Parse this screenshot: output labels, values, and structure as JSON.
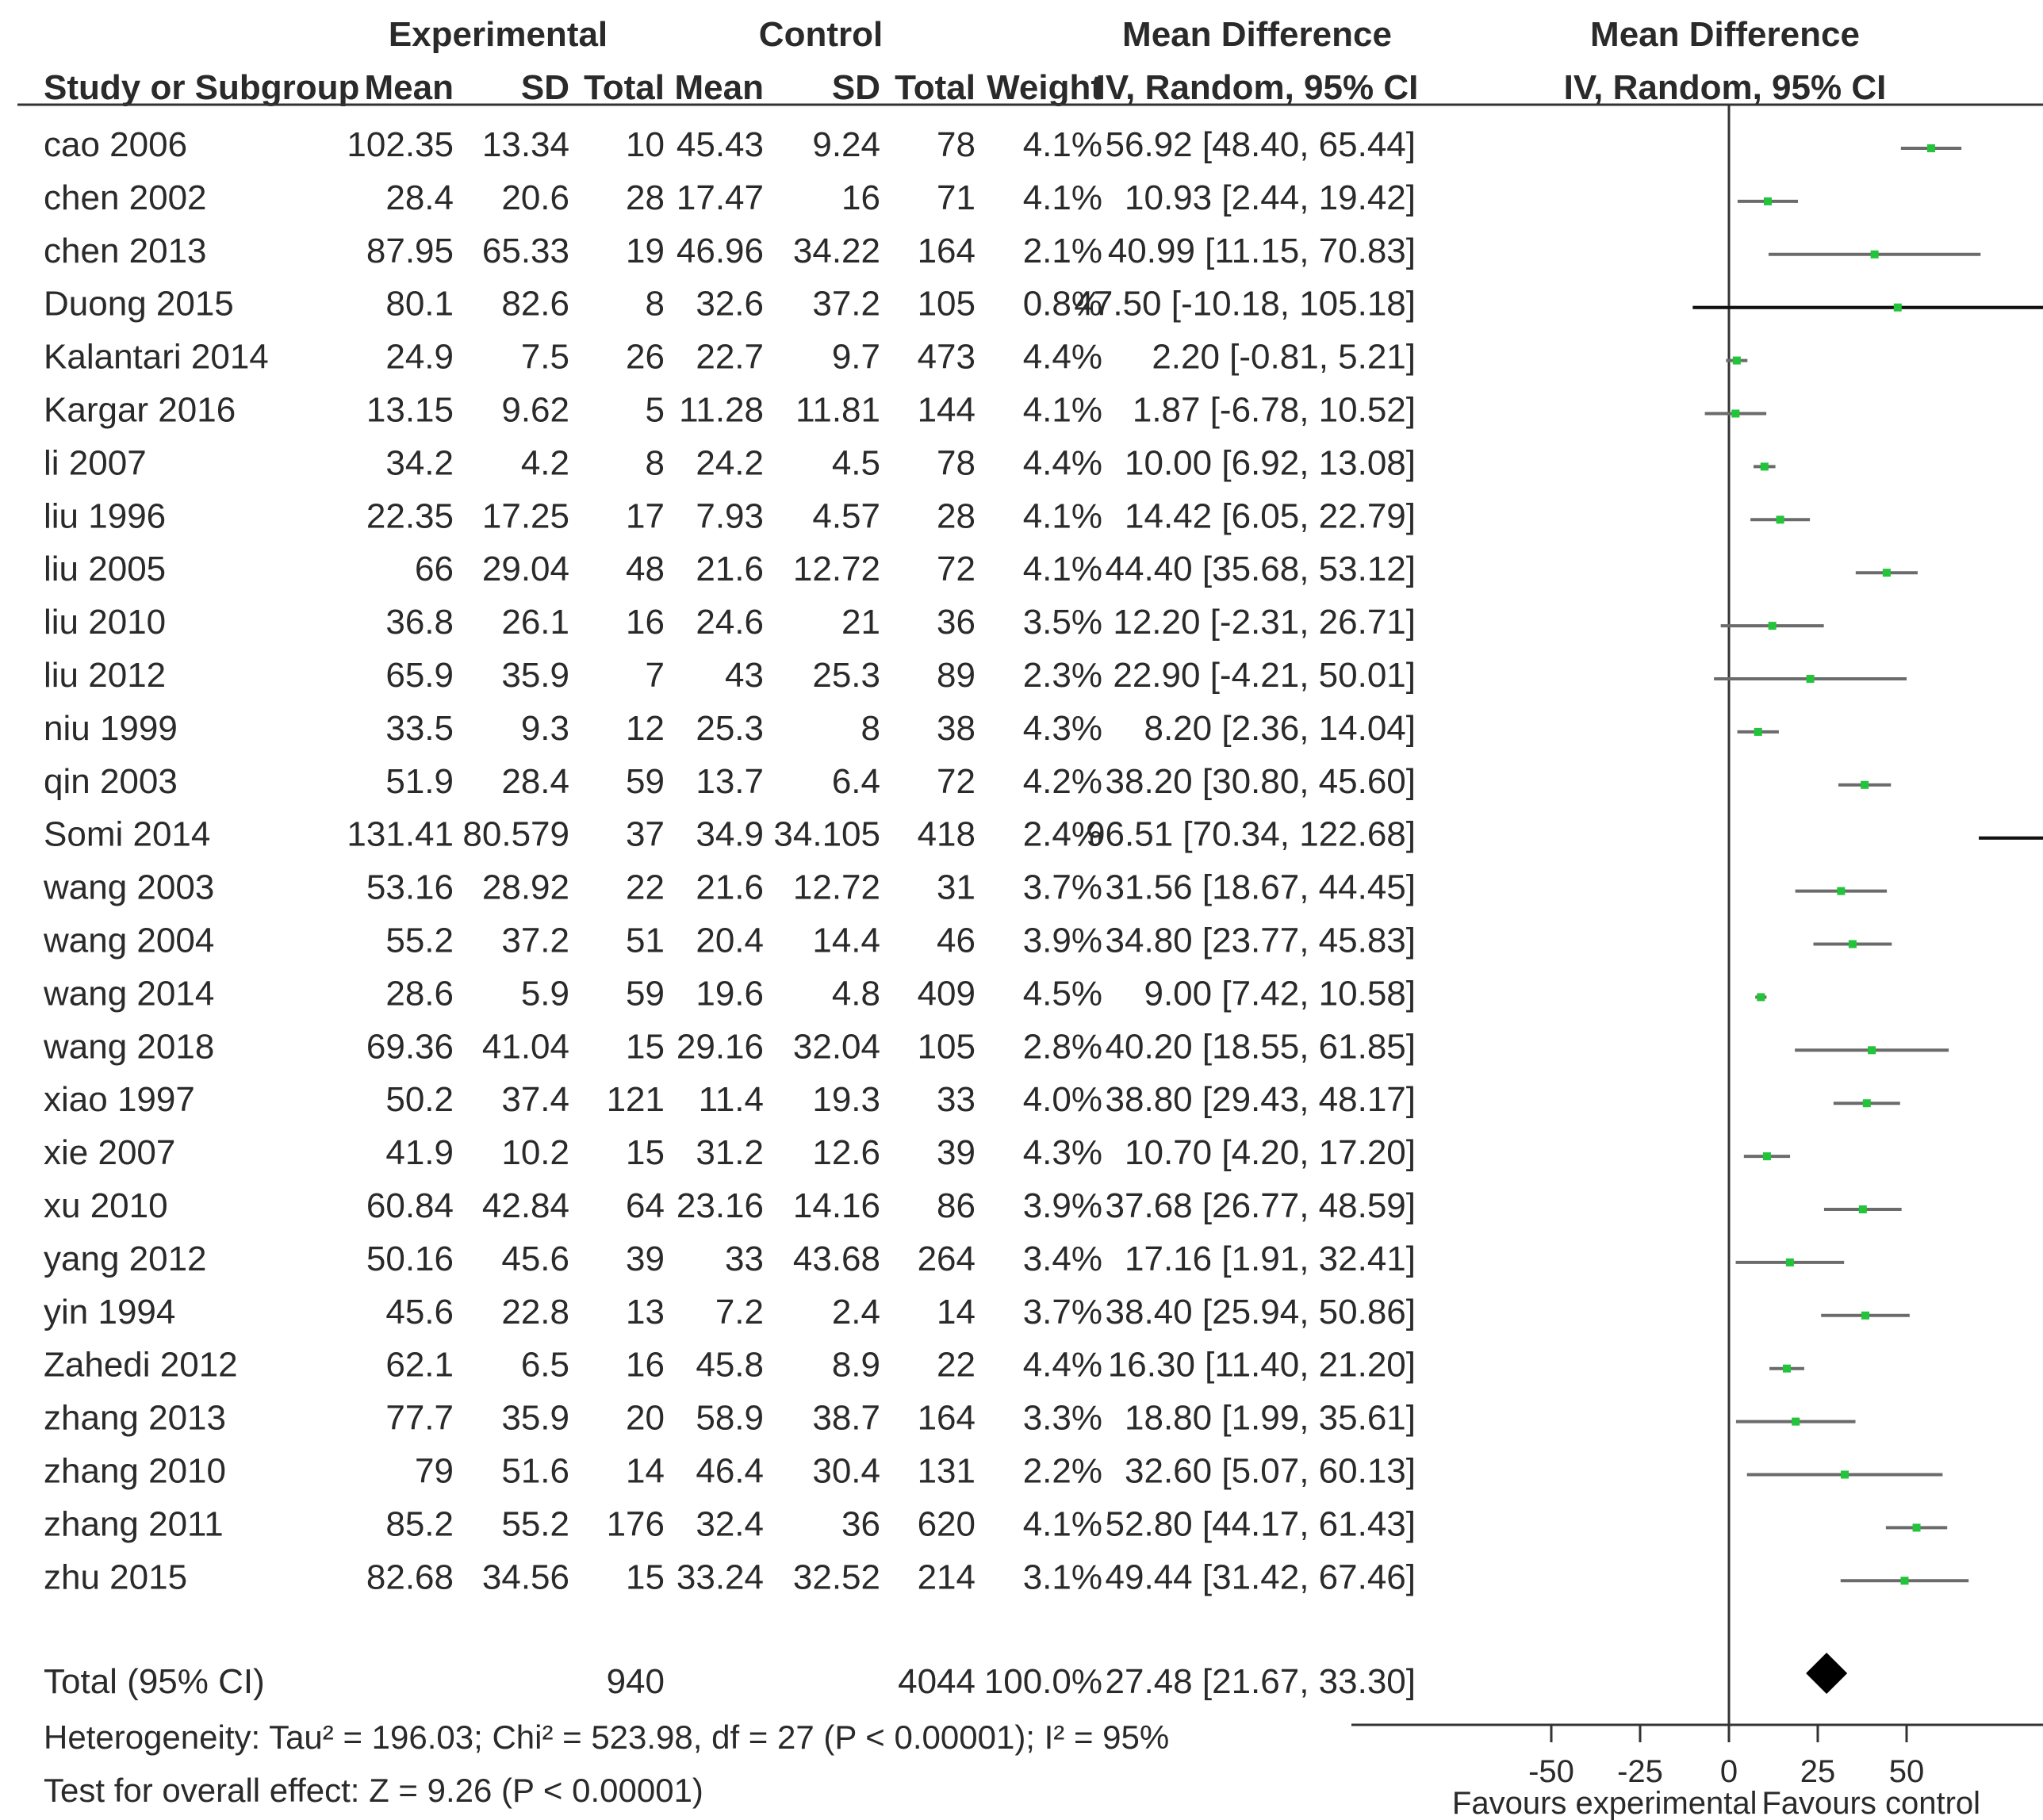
{
  "headers": {
    "experimental": "Experimental",
    "control": "Control",
    "mean_difference": "Mean Difference",
    "mean_difference_plot": "Mean Difference",
    "study": "Study or Subgroup",
    "exp_mean": "Mean",
    "exp_sd": "SD",
    "exp_total": "Total",
    "ctl_mean": "Mean",
    "ctl_sd": "SD",
    "ctl_total": "Total",
    "weight": "Weight",
    "method": "IV, Random, 95% CI",
    "method_plot": "IV, Random, 95% CI"
  },
  "chart_data": {
    "type": "forest",
    "title": "Mean Difference IV, Random, 95% CI",
    "xlabel_left": "Favours experimental",
    "xlabel_right": "Favours control",
    "xlim": [
      -100,
      100
    ],
    "xticks": [
      -50,
      -25,
      0,
      25,
      50
    ],
    "studies": [
      {
        "name": "cao 2006",
        "exp_mean": "102.35",
        "exp_sd": "13.34",
        "exp_total": "10",
        "ctl_mean": "45.43",
        "ctl_sd": "9.24",
        "ctl_total": "78",
        "weight": "4.1%",
        "ci_text": "56.92 [48.40, 65.44]",
        "md": 56.92,
        "lo": 48.4,
        "hi": 65.44
      },
      {
        "name": "chen 2002",
        "exp_mean": "28.4",
        "exp_sd": "20.6",
        "exp_total": "28",
        "ctl_mean": "17.47",
        "ctl_sd": "16",
        "ctl_total": "71",
        "weight": "4.1%",
        "ci_text": "10.93 [2.44, 19.42]",
        "md": 10.93,
        "lo": 2.44,
        "hi": 19.42
      },
      {
        "name": "chen 2013",
        "exp_mean": "87.95",
        "exp_sd": "65.33",
        "exp_total": "19",
        "ctl_mean": "46.96",
        "ctl_sd": "34.22",
        "ctl_total": "164",
        "weight": "2.1%",
        "ci_text": "40.99 [11.15, 70.83]",
        "md": 40.99,
        "lo": 11.15,
        "hi": 70.83
      },
      {
        "name": "Duong 2015",
        "exp_mean": "80.1",
        "exp_sd": "82.6",
        "exp_total": "8",
        "ctl_mean": "32.6",
        "ctl_sd": "37.2",
        "ctl_total": "105",
        "weight": "0.8%",
        "ci_text": "47.50 [-10.18, 105.18]",
        "md": 47.5,
        "lo": -10.18,
        "hi": 105.18
      },
      {
        "name": "Kalantari 2014",
        "exp_mean": "24.9",
        "exp_sd": "7.5",
        "exp_total": "26",
        "ctl_mean": "22.7",
        "ctl_sd": "9.7",
        "ctl_total": "473",
        "weight": "4.4%",
        "ci_text": "2.20 [-0.81, 5.21]",
        "md": 2.2,
        "lo": -0.81,
        "hi": 5.21
      },
      {
        "name": "Kargar 2016",
        "exp_mean": "13.15",
        "exp_sd": "9.62",
        "exp_total": "5",
        "ctl_mean": "11.28",
        "ctl_sd": "11.81",
        "ctl_total": "144",
        "weight": "4.1%",
        "ci_text": "1.87 [-6.78, 10.52]",
        "md": 1.87,
        "lo": -6.78,
        "hi": 10.52
      },
      {
        "name": "li 2007",
        "exp_mean": "34.2",
        "exp_sd": "4.2",
        "exp_total": "8",
        "ctl_mean": "24.2",
        "ctl_sd": "4.5",
        "ctl_total": "78",
        "weight": "4.4%",
        "ci_text": "10.00 [6.92, 13.08]",
        "md": 10.0,
        "lo": 6.92,
        "hi": 13.08
      },
      {
        "name": "liu 1996",
        "exp_mean": "22.35",
        "exp_sd": "17.25",
        "exp_total": "17",
        "ctl_mean": "7.93",
        "ctl_sd": "4.57",
        "ctl_total": "28",
        "weight": "4.1%",
        "ci_text": "14.42 [6.05, 22.79]",
        "md": 14.42,
        "lo": 6.05,
        "hi": 22.79
      },
      {
        "name": "liu 2005",
        "exp_mean": "66",
        "exp_sd": "29.04",
        "exp_total": "48",
        "ctl_mean": "21.6",
        "ctl_sd": "12.72",
        "ctl_total": "72",
        "weight": "4.1%",
        "ci_text": "44.40 [35.68, 53.12]",
        "md": 44.4,
        "lo": 35.68,
        "hi": 53.12
      },
      {
        "name": "liu 2010",
        "exp_mean": "36.8",
        "exp_sd": "26.1",
        "exp_total": "16",
        "ctl_mean": "24.6",
        "ctl_sd": "21",
        "ctl_total": "36",
        "weight": "3.5%",
        "ci_text": "12.20 [-2.31, 26.71]",
        "md": 12.2,
        "lo": -2.31,
        "hi": 26.71
      },
      {
        "name": "liu 2012",
        "exp_mean": "65.9",
        "exp_sd": "35.9",
        "exp_total": "7",
        "ctl_mean": "43",
        "ctl_sd": "25.3",
        "ctl_total": "89",
        "weight": "2.3%",
        "ci_text": "22.90 [-4.21, 50.01]",
        "md": 22.9,
        "lo": -4.21,
        "hi": 50.01
      },
      {
        "name": "niu 1999",
        "exp_mean": "33.5",
        "exp_sd": "9.3",
        "exp_total": "12",
        "ctl_mean": "25.3",
        "ctl_sd": "8",
        "ctl_total": "38",
        "weight": "4.3%",
        "ci_text": "8.20 [2.36, 14.04]",
        "md": 8.2,
        "lo": 2.36,
        "hi": 14.04
      },
      {
        "name": "qin 2003",
        "exp_mean": "51.9",
        "exp_sd": "28.4",
        "exp_total": "59",
        "ctl_mean": "13.7",
        "ctl_sd": "6.4",
        "ctl_total": "72",
        "weight": "4.2%",
        "ci_text": "38.20 [30.80, 45.60]",
        "md": 38.2,
        "lo": 30.8,
        "hi": 45.6
      },
      {
        "name": "Somi 2014",
        "exp_mean": "131.41",
        "exp_sd": "80.579",
        "exp_total": "37",
        "ctl_mean": "34.9",
        "ctl_sd": "34.105",
        "ctl_total": "418",
        "weight": "2.4%",
        "ci_text": "96.51 [70.34, 122.68]",
        "md": 96.51,
        "lo": 70.34,
        "hi": 122.68
      },
      {
        "name": "wang 2003",
        "exp_mean": "53.16",
        "exp_sd": "28.92",
        "exp_total": "22",
        "ctl_mean": "21.6",
        "ctl_sd": "12.72",
        "ctl_total": "31",
        "weight": "3.7%",
        "ci_text": "31.56 [18.67, 44.45]",
        "md": 31.56,
        "lo": 18.67,
        "hi": 44.45
      },
      {
        "name": "wang 2004",
        "exp_mean": "55.2",
        "exp_sd": "37.2",
        "exp_total": "51",
        "ctl_mean": "20.4",
        "ctl_sd": "14.4",
        "ctl_total": "46",
        "weight": "3.9%",
        "ci_text": "34.80 [23.77, 45.83]",
        "md": 34.8,
        "lo": 23.77,
        "hi": 45.83
      },
      {
        "name": "wang 2014",
        "exp_mean": "28.6",
        "exp_sd": "5.9",
        "exp_total": "59",
        "ctl_mean": "19.6",
        "ctl_sd": "4.8",
        "ctl_total": "409",
        "weight": "4.5%",
        "ci_text": "9.00 [7.42, 10.58]",
        "md": 9.0,
        "lo": 7.42,
        "hi": 10.58
      },
      {
        "name": "wang 2018",
        "exp_mean": "69.36",
        "exp_sd": "41.04",
        "exp_total": "15",
        "ctl_mean": "29.16",
        "ctl_sd": "32.04",
        "ctl_total": "105",
        "weight": "2.8%",
        "ci_text": "40.20 [18.55, 61.85]",
        "md": 40.2,
        "lo": 18.55,
        "hi": 61.85
      },
      {
        "name": "xiao 1997",
        "exp_mean": "50.2",
        "exp_sd": "37.4",
        "exp_total": "121",
        "ctl_mean": "11.4",
        "ctl_sd": "19.3",
        "ctl_total": "33",
        "weight": "4.0%",
        "ci_text": "38.80 [29.43, 48.17]",
        "md": 38.8,
        "lo": 29.43,
        "hi": 48.17
      },
      {
        "name": "xie 2007",
        "exp_mean": "41.9",
        "exp_sd": "10.2",
        "exp_total": "15",
        "ctl_mean": "31.2",
        "ctl_sd": "12.6",
        "ctl_total": "39",
        "weight": "4.3%",
        "ci_text": "10.70 [4.20, 17.20]",
        "md": 10.7,
        "lo": 4.2,
        "hi": 17.2
      },
      {
        "name": "xu 2010",
        "exp_mean": "60.84",
        "exp_sd": "42.84",
        "exp_total": "64",
        "ctl_mean": "23.16",
        "ctl_sd": "14.16",
        "ctl_total": "86",
        "weight": "3.9%",
        "ci_text": "37.68 [26.77, 48.59]",
        "md": 37.68,
        "lo": 26.77,
        "hi": 48.59
      },
      {
        "name": "yang 2012",
        "exp_mean": "50.16",
        "exp_sd": "45.6",
        "exp_total": "39",
        "ctl_mean": "33",
        "ctl_sd": "43.68",
        "ctl_total": "264",
        "weight": "3.4%",
        "ci_text": "17.16 [1.91, 32.41]",
        "md": 17.16,
        "lo": 1.91,
        "hi": 32.41
      },
      {
        "name": "yin 1994",
        "exp_mean": "45.6",
        "exp_sd": "22.8",
        "exp_total": "13",
        "ctl_mean": "7.2",
        "ctl_sd": "2.4",
        "ctl_total": "14",
        "weight": "3.7%",
        "ci_text": "38.40 [25.94, 50.86]",
        "md": 38.4,
        "lo": 25.94,
        "hi": 50.86
      },
      {
        "name": "Zahedi 2012",
        "exp_mean": "62.1",
        "exp_sd": "6.5",
        "exp_total": "16",
        "ctl_mean": "45.8",
        "ctl_sd": "8.9",
        "ctl_total": "22",
        "weight": "4.4%",
        "ci_text": "16.30 [11.40, 21.20]",
        "md": 16.3,
        "lo": 11.4,
        "hi": 21.2
      },
      {
        "name": "zhang  2013",
        "exp_mean": "77.7",
        "exp_sd": "35.9",
        "exp_total": "20",
        "ctl_mean": "58.9",
        "ctl_sd": "38.7",
        "ctl_total": "164",
        "weight": "3.3%",
        "ci_text": "18.80 [1.99, 35.61]",
        "md": 18.8,
        "lo": 1.99,
        "hi": 35.61
      },
      {
        "name": "zhang 2010",
        "exp_mean": "79",
        "exp_sd": "51.6",
        "exp_total": "14",
        "ctl_mean": "46.4",
        "ctl_sd": "30.4",
        "ctl_total": "131",
        "weight": "2.2%",
        "ci_text": "32.60 [5.07, 60.13]",
        "md": 32.6,
        "lo": 5.07,
        "hi": 60.13
      },
      {
        "name": "zhang 2011",
        "exp_mean": "85.2",
        "exp_sd": "55.2",
        "exp_total": "176",
        "ctl_mean": "32.4",
        "ctl_sd": "36",
        "ctl_total": "620",
        "weight": "4.1%",
        "ci_text": "52.80 [44.17, 61.43]",
        "md": 52.8,
        "lo": 44.17,
        "hi": 61.43
      },
      {
        "name": "zhu 2015",
        "exp_mean": "82.68",
        "exp_sd": "34.56",
        "exp_total": "15",
        "ctl_mean": "33.24",
        "ctl_sd": "32.52",
        "ctl_total": "214",
        "weight": "3.1%",
        "ci_text": "49.44 [31.42, 67.46]",
        "md": 49.44,
        "lo": 31.42,
        "hi": 67.46
      }
    ],
    "total": {
      "name": "Total (95% CI)",
      "exp_total": "940",
      "ctl_total": "4044",
      "weight": "100.0%",
      "ci_text": "27.48 [21.67, 33.30]",
      "md": 27.48,
      "lo": 21.67,
      "hi": 33.3
    },
    "heterogeneity": "Heterogeneity: Tau² = 196.03; Chi² = 523.98, df = 27 (P < 0.00001); I² = 95%",
    "overall_effect": "Test for overall effect: Z = 9.26 (P < 0.00001)",
    "colors": {
      "point": "#22c43a",
      "ci_line": "#6b6b6b",
      "diamond": "#000000",
      "axis": "#333333"
    }
  }
}
